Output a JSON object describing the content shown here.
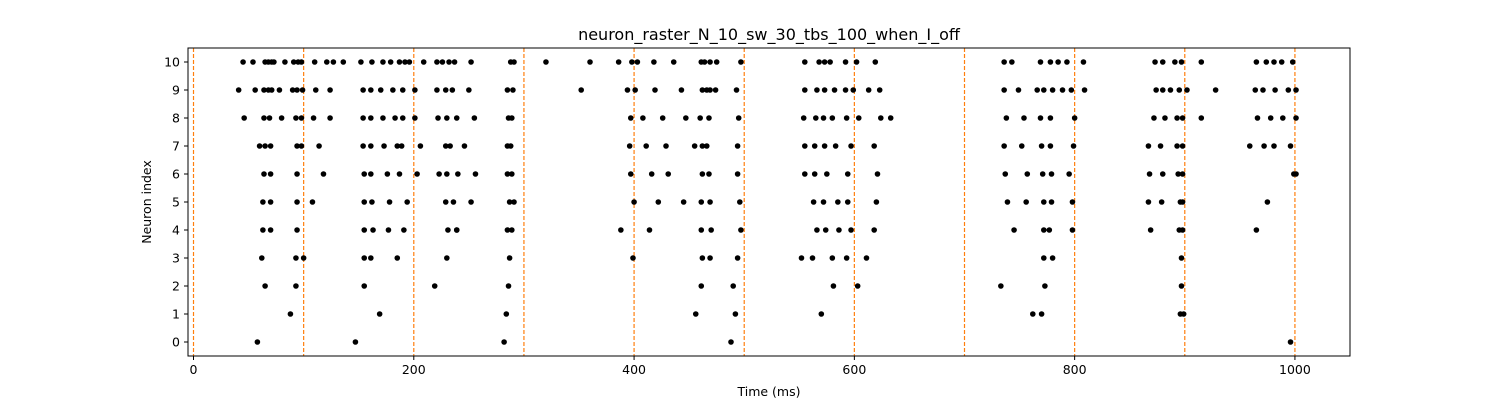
{
  "chart_data": {
    "type": "scatter",
    "title": "neuron_raster_N_10_sw_30_tbs_100_when_I_off",
    "xlabel": "Time (ms)",
    "ylabel": "Neuron index",
    "xlim": [
      -5,
      1050
    ],
    "ylim": [
      -0.5,
      10.5
    ],
    "xticks": [
      0,
      200,
      400,
      600,
      800,
      1000
    ],
    "yticks": [
      0,
      1,
      2,
      3,
      4,
      5,
      6,
      7,
      8,
      9,
      10
    ],
    "grid": false,
    "marker_color": "#000000",
    "vline_color": "#ff7f0e",
    "vlines": [
      0,
      100,
      200,
      300,
      400,
      500,
      600,
      700,
      800,
      900,
      1000
    ],
    "series": [
      {
        "neuron": 0,
        "times": [
          58,
          147,
          282,
          488,
          996
        ]
      },
      {
        "neuron": 1,
        "times": [
          88,
          169,
          284,
          456,
          492,
          570,
          762,
          770,
          896,
          899
        ]
      },
      {
        "neuron": 2,
        "times": [
          65,
          93,
          155,
          219,
          286,
          461,
          490,
          581,
          603,
          733,
          773,
          897
        ]
      },
      {
        "neuron": 3,
        "times": [
          62,
          93,
          100,
          155,
          161,
          185,
          230,
          287,
          399,
          462,
          469,
          494,
          552,
          562,
          580,
          593,
          611,
          772,
          780,
          897
        ]
      },
      {
        "neuron": 4,
        "times": [
          63,
          70,
          94,
          155,
          163,
          177,
          191,
          231,
          239,
          239,
          285,
          289,
          388,
          414,
          461,
          470,
          497,
          566,
          574,
          586,
          597,
          618,
          745,
          772,
          777,
          798,
          869,
          895,
          898,
          965
        ]
      },
      {
        "neuron": 5,
        "times": [
          63,
          70,
          94,
          108,
          155,
          162,
          178,
          194,
          229,
          236,
          252,
          287,
          291,
          400,
          422,
          445,
          461,
          469,
          496,
          563,
          572,
          585,
          594,
          620,
          739,
          756,
          772,
          779,
          798,
          867,
          879,
          896,
          898,
          975
        ]
      },
      {
        "neuron": 6,
        "times": [
          64,
          70,
          94,
          118,
          155,
          161,
          176,
          187,
          203,
          223,
          230,
          240,
          256,
          285,
          289,
          397,
          416,
          431,
          462,
          468,
          494,
          555,
          564,
          575,
          594,
          621,
          737,
          757,
          771,
          779,
          795,
          868,
          880,
          894,
          898,
          999,
          1001
        ]
      },
      {
        "neuron": 7,
        "times": [
          60,
          65,
          70,
          94,
          98,
          114,
          154,
          161,
          173,
          185,
          189,
          206,
          229,
          233,
          246,
          285,
          288,
          396,
          411,
          429,
          455,
          462,
          466,
          494,
          555,
          564,
          573,
          583,
          597,
          618,
          736,
          752,
          770,
          778,
          799,
          867,
          878,
          893,
          898,
          959,
          972,
          981,
          996
        ]
      },
      {
        "neuron": 8,
        "times": [
          46,
          64,
          69,
          80,
          93,
          98,
          109,
          124,
          154,
          161,
          172,
          183,
          190,
          201,
          222,
          230,
          239,
          255,
          286,
          289,
          397,
          408,
          426,
          447,
          460,
          468,
          495,
          554,
          565,
          572,
          580,
          593,
          604,
          624,
          633,
          738,
          754,
          769,
          778,
          800,
          872,
          882,
          893,
          898,
          915,
          966,
          978,
          989,
          1001
        ]
      },
      {
        "neuron": 9,
        "times": [
          41,
          56,
          64,
          68,
          71,
          78,
          90,
          94,
          99,
          111,
          124,
          154,
          161,
          170,
          181,
          190,
          201,
          221,
          229,
          235,
          250,
          285,
          290,
          352,
          394,
          401,
          419,
          443,
          462,
          466,
          469,
          474,
          493,
          555,
          566,
          573,
          582,
          592,
          599,
          613,
          623,
          736,
          749,
          766,
          772,
          780,
          789,
          797,
          809,
          874,
          880,
          887,
          895,
          902,
          928,
          964,
          971,
          982,
          994,
          1001
        ]
      },
      {
        "neuron": 10,
        "times": [
          45,
          54,
          65,
          68,
          71,
          73,
          83,
          91,
          95,
          98,
          110,
          121,
          127,
          136,
          152,
          162,
          172,
          179,
          187,
          192,
          196,
          209,
          221,
          226,
          232,
          237,
          252,
          288,
          291,
          320,
          360,
          386,
          398,
          403,
          418,
          436,
          461,
          464,
          469,
          475,
          497,
          555,
          568,
          573,
          578,
          592,
          602,
          619,
          736,
          743,
          769,
          778,
          785,
          793,
          808,
          873,
          880,
          891,
          897,
          915,
          965,
          974,
          981,
          988,
          998
        ]
      }
    ]
  }
}
